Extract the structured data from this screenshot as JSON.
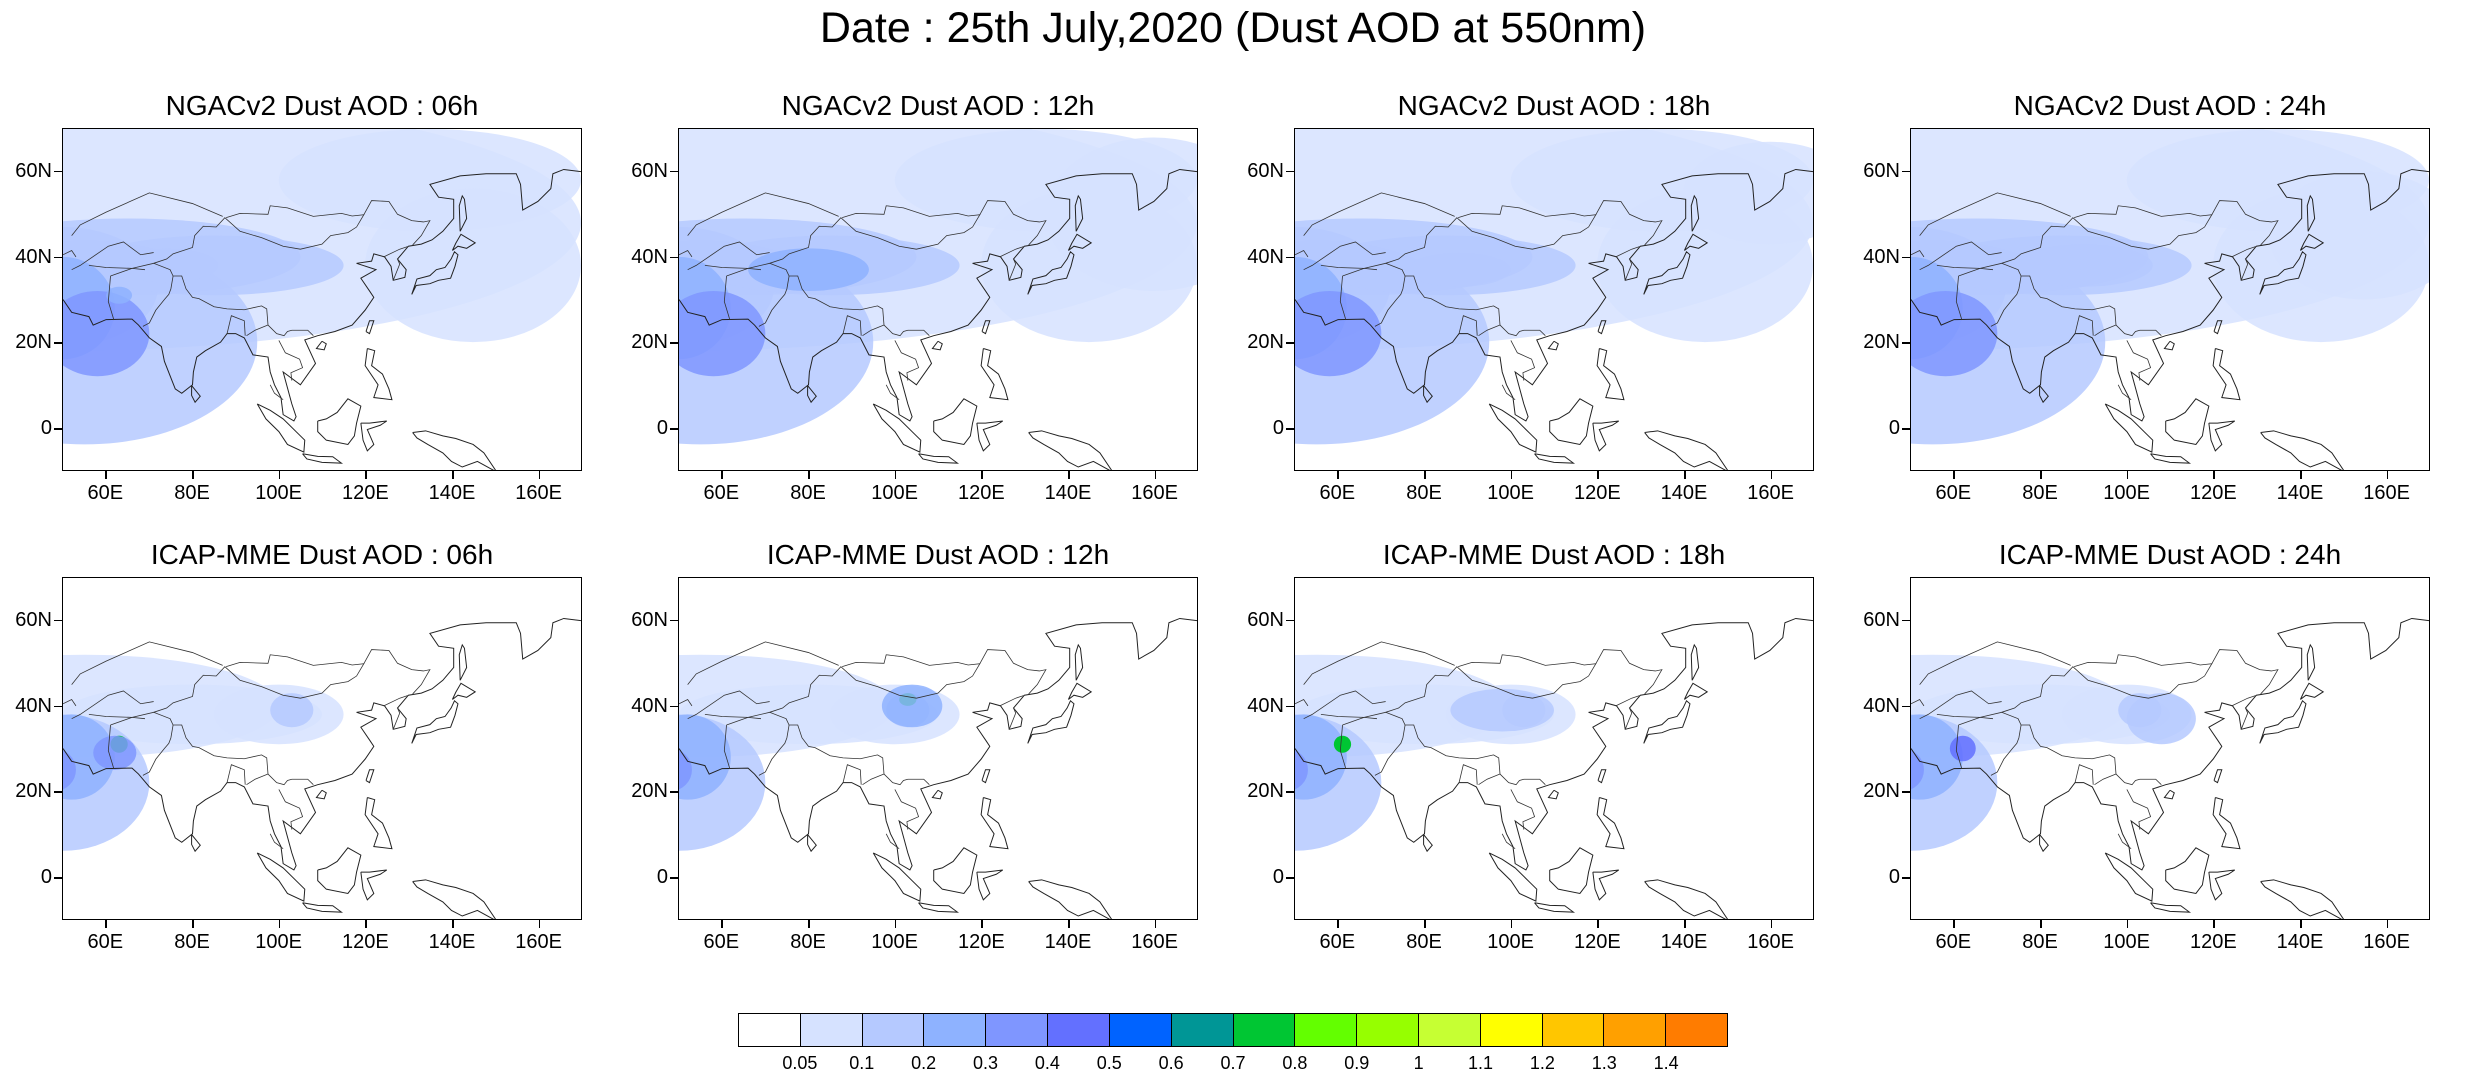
{
  "title": "Date : 25th July,2020 (Dust AOD at 550nm)",
  "panels": [
    {
      "title": "NGACv2 Dust AOD : 06h",
      "model": "NGACv2",
      "lead": "06h"
    },
    {
      "title": "NGACv2 Dust AOD : 12h",
      "model": "NGACv2",
      "lead": "12h"
    },
    {
      "title": "NGACv2 Dust AOD : 18h",
      "model": "NGACv2",
      "lead": "18h"
    },
    {
      "title": "NGACv2 Dust AOD : 24h",
      "model": "NGACv2",
      "lead": "24h"
    },
    {
      "title": "ICAP-MME Dust AOD : 06h",
      "model": "ICAP-MME",
      "lead": "06h"
    },
    {
      "title": "ICAP-MME Dust AOD : 12h",
      "model": "ICAP-MME",
      "lead": "12h"
    },
    {
      "title": "ICAP-MME Dust AOD : 18h",
      "model": "ICAP-MME",
      "lead": "18h"
    },
    {
      "title": "ICAP-MME Dust AOD : 24h",
      "model": "ICAP-MME",
      "lead": "24h"
    }
  ],
  "axes": {
    "lat_ticks": [
      "60N",
      "40N",
      "20N",
      "0"
    ],
    "lon_ticks": [
      "60E",
      "80E",
      "100E",
      "120E",
      "140E",
      "160E"
    ],
    "lat_values": [
      60,
      40,
      20,
      0
    ],
    "lon_values": [
      60,
      80,
      100,
      120,
      140,
      160
    ],
    "lat_range": [
      -10,
      70
    ],
    "lon_range": [
      50,
      170
    ]
  },
  "colorbar": {
    "labels": [
      "0.05",
      "0.1",
      "0.2",
      "0.3",
      "0.4",
      "0.5",
      "0.6",
      "0.7",
      "0.8",
      "0.9",
      "1",
      "1.1",
      "1.2",
      "1.3",
      "1.4"
    ],
    "colors": [
      "#ffffff",
      "#d6e2ff",
      "#b5c9ff",
      "#8eb2ff",
      "#7f96ff",
      "#6370ff",
      "#0063ff",
      "#009696",
      "#00c633",
      "#63ff00",
      "#96ff00",
      "#c6ff33",
      "#ffff00",
      "#ffc600",
      "#ffa000",
      "#ff7c00",
      "#ff1900"
    ]
  }
}
